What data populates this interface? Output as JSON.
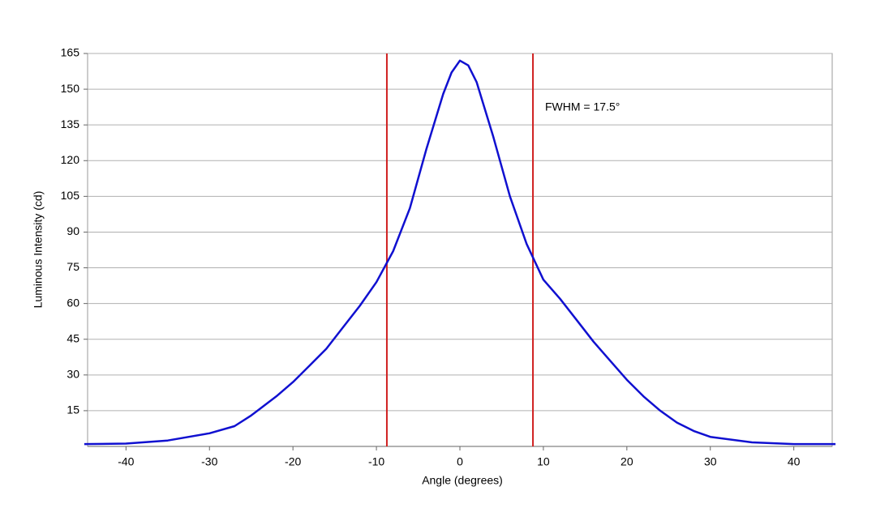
{
  "chart_data": {
    "type": "line",
    "xlabel": "Angle (degrees)",
    "ylabel": "Luminous Intensity (cd)",
    "annotation": "FWHM = 17.5°",
    "x": [
      -45,
      -40,
      -35,
      -30,
      -27,
      -25,
      -22,
      -20,
      -18,
      -16,
      -14,
      -12,
      -10,
      -8,
      -6,
      -4,
      -2,
      -1,
      0,
      1,
      2,
      4,
      6,
      8,
      10,
      12,
      14,
      16,
      18,
      20,
      22,
      24,
      26,
      28,
      30,
      35,
      40,
      45
    ],
    "series": [
      {
        "name": "Luminous Intensity",
        "color": "#1010d0",
        "values": [
          1,
          1.2,
          2.5,
          5.5,
          8.5,
          13,
          21,
          27,
          34,
          41,
          50,
          59,
          69,
          82,
          100,
          125,
          148,
          157,
          162,
          160,
          153,
          130,
          105,
          85,
          70,
          62,
          53,
          44,
          36,
          28,
          21,
          15,
          10,
          6.5,
          4,
          1.7,
          1,
          1
        ]
      }
    ],
    "vlines": [
      -8.75,
      8.75
    ],
    "vline_color": "#d02020",
    "xlim": [
      -44.6,
      44.6
    ],
    "xticks": [
      -40,
      -30,
      -20,
      -10,
      0,
      10,
      20,
      30,
      40
    ],
    "ylim": [
      0,
      165
    ],
    "yticks": [
      15,
      30,
      45,
      60,
      75,
      90,
      105,
      120,
      135,
      150,
      165
    ],
    "grid": true
  }
}
